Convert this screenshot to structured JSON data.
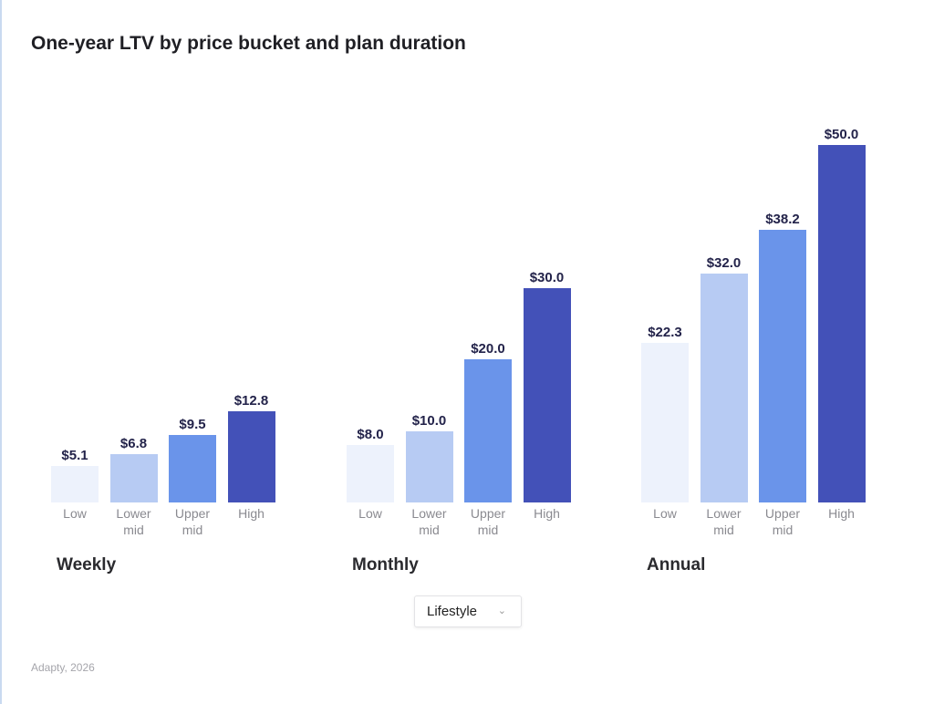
{
  "chart_data": {
    "type": "bar",
    "title": "One-year LTV by price bucket and plan duration",
    "categories": [
      "Low",
      "Lower mid",
      "Upper mid",
      "High"
    ],
    "groups": [
      {
        "name": "Weekly",
        "values": [
          5.1,
          6.8,
          9.5,
          12.8
        ],
        "labels": [
          "$5.1",
          "$6.8",
          "$9.5",
          "$12.8"
        ]
      },
      {
        "name": "Monthly",
        "values": [
          8.0,
          10.0,
          20.0,
          30.0
        ],
        "labels": [
          "$8.0",
          "$10.0",
          "$20.0",
          "$30.0"
        ]
      },
      {
        "name": "Annual",
        "values": [
          22.3,
          32.0,
          38.2,
          50.0
        ],
        "labels": [
          "$22.3",
          "$32.0",
          "$38.2",
          "$50.0"
        ]
      }
    ],
    "category_labels": [
      [
        "Low"
      ],
      [
        "Lower",
        "mid"
      ],
      [
        "Upper",
        "mid"
      ],
      [
        "High"
      ]
    ],
    "colors": [
      "#edf2fc",
      "#b7cbf3",
      "#6a94ea",
      "#4351b8"
    ],
    "ylim": [
      0,
      50
    ],
    "grid": false
  },
  "filter": {
    "selected": "Lifestyle",
    "icon": "chevron-down-icon"
  },
  "source": "Adapty, 2026"
}
